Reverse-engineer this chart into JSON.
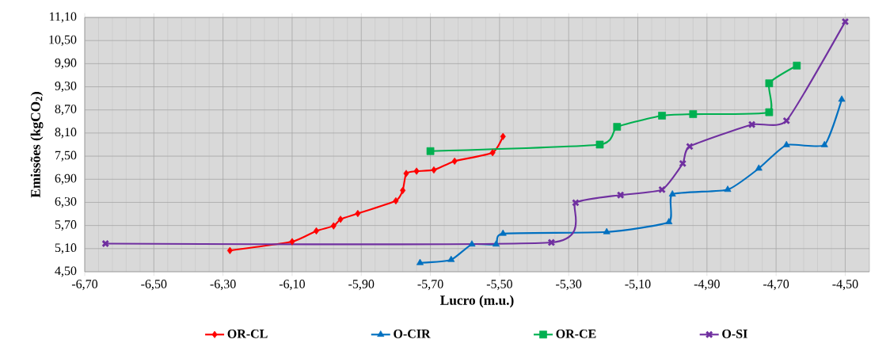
{
  "chart_data": {
    "type": "line",
    "xlabel": "Lucro (m.u.)",
    "ylabel": "Emissões (kgCO$_{2}$)",
    "xlim": [
      -6.7,
      -4.43
    ],
    "ylim": [
      4.5,
      11.1
    ],
    "xticks": [
      {
        "value": -6.7,
        "label": "-6,70"
      },
      {
        "value": -6.5,
        "label": "-6,50"
      },
      {
        "value": -6.3,
        "label": "-6,30"
      },
      {
        "value": -6.1,
        "label": "-6,10"
      },
      {
        "value": -5.9,
        "label": "-5,90"
      },
      {
        "value": -5.7,
        "label": "-5,70"
      },
      {
        "value": -5.5,
        "label": "-5,50"
      },
      {
        "value": -5.3,
        "label": "-5,30"
      },
      {
        "value": -5.1,
        "label": "-5,10"
      },
      {
        "value": -4.9,
        "label": "-4,90"
      },
      {
        "value": -4.7,
        "label": "-4,70"
      },
      {
        "value": -4.5,
        "label": "-4,50"
      }
    ],
    "yticks": [
      {
        "value": 4.5,
        "label": "4,50"
      },
      {
        "value": 5.1,
        "label": "5,10"
      },
      {
        "value": 5.7,
        "label": "5,70"
      },
      {
        "value": 6.3,
        "label": "6,30"
      },
      {
        "value": 6.9,
        "label": "6,90"
      },
      {
        "value": 7.5,
        "label": "7,50"
      },
      {
        "value": 8.1,
        "label": "8,10"
      },
      {
        "value": 8.7,
        "label": "8,70"
      },
      {
        "value": 9.3,
        "label": "9,30"
      },
      {
        "value": 9.9,
        "label": "9,90"
      },
      {
        "value": 10.5,
        "label": "10,50"
      },
      {
        "value": 11.1,
        "label": "11,10"
      }
    ],
    "grid": true,
    "legend": "bottom",
    "line_style": "solid",
    "series": [
      {
        "name": "OR-CL",
        "color": "#ff0000",
        "marker": "diamond",
        "x": [
          -6.28,
          -6.1,
          -6.03,
          -5.98,
          -5.96,
          -5.91,
          -5.8,
          -5.78,
          -5.77,
          -5.74,
          -5.69,
          -5.63,
          -5.52,
          -5.49
        ],
        "values": [
          5.05,
          5.28,
          5.56,
          5.69,
          5.86,
          6.01,
          6.34,
          6.61,
          7.05,
          7.11,
          7.14,
          7.37,
          7.59,
          8.01
        ]
      },
      {
        "name": "O-CIR",
        "color": "#0070c0",
        "marker": "triangle",
        "x": [
          -5.73,
          -5.64,
          -5.58,
          -5.51,
          -5.49,
          -5.19,
          -5.01,
          -5.0,
          -4.84,
          -4.75,
          -4.67,
          -4.56,
          -4.51
        ],
        "values": [
          4.73,
          4.81,
          5.21,
          5.21,
          5.49,
          5.53,
          5.79,
          6.51,
          6.63,
          7.18,
          7.79,
          7.79,
          8.97
        ]
      },
      {
        "name": "OR-CE",
        "color": "#00b050",
        "marker": "square",
        "x": [
          -5.7,
          -5.21,
          -5.16,
          -5.03,
          -4.94,
          -4.72,
          -4.72,
          -4.64
        ],
        "values": [
          7.63,
          7.8,
          8.26,
          8.55,
          8.59,
          8.64,
          9.39,
          9.85
        ]
      },
      {
        "name": "O-SI",
        "color": "#7030a0",
        "marker": "cross",
        "x": [
          -6.64,
          -5.35,
          -5.28,
          -5.15,
          -5.03,
          -4.97,
          -4.95,
          -4.77,
          -4.67,
          -4.5
        ],
        "values": [
          5.23,
          5.26,
          6.29,
          6.49,
          6.63,
          7.31,
          7.75,
          8.32,
          8.42,
          10.99
        ]
      }
    ]
  }
}
